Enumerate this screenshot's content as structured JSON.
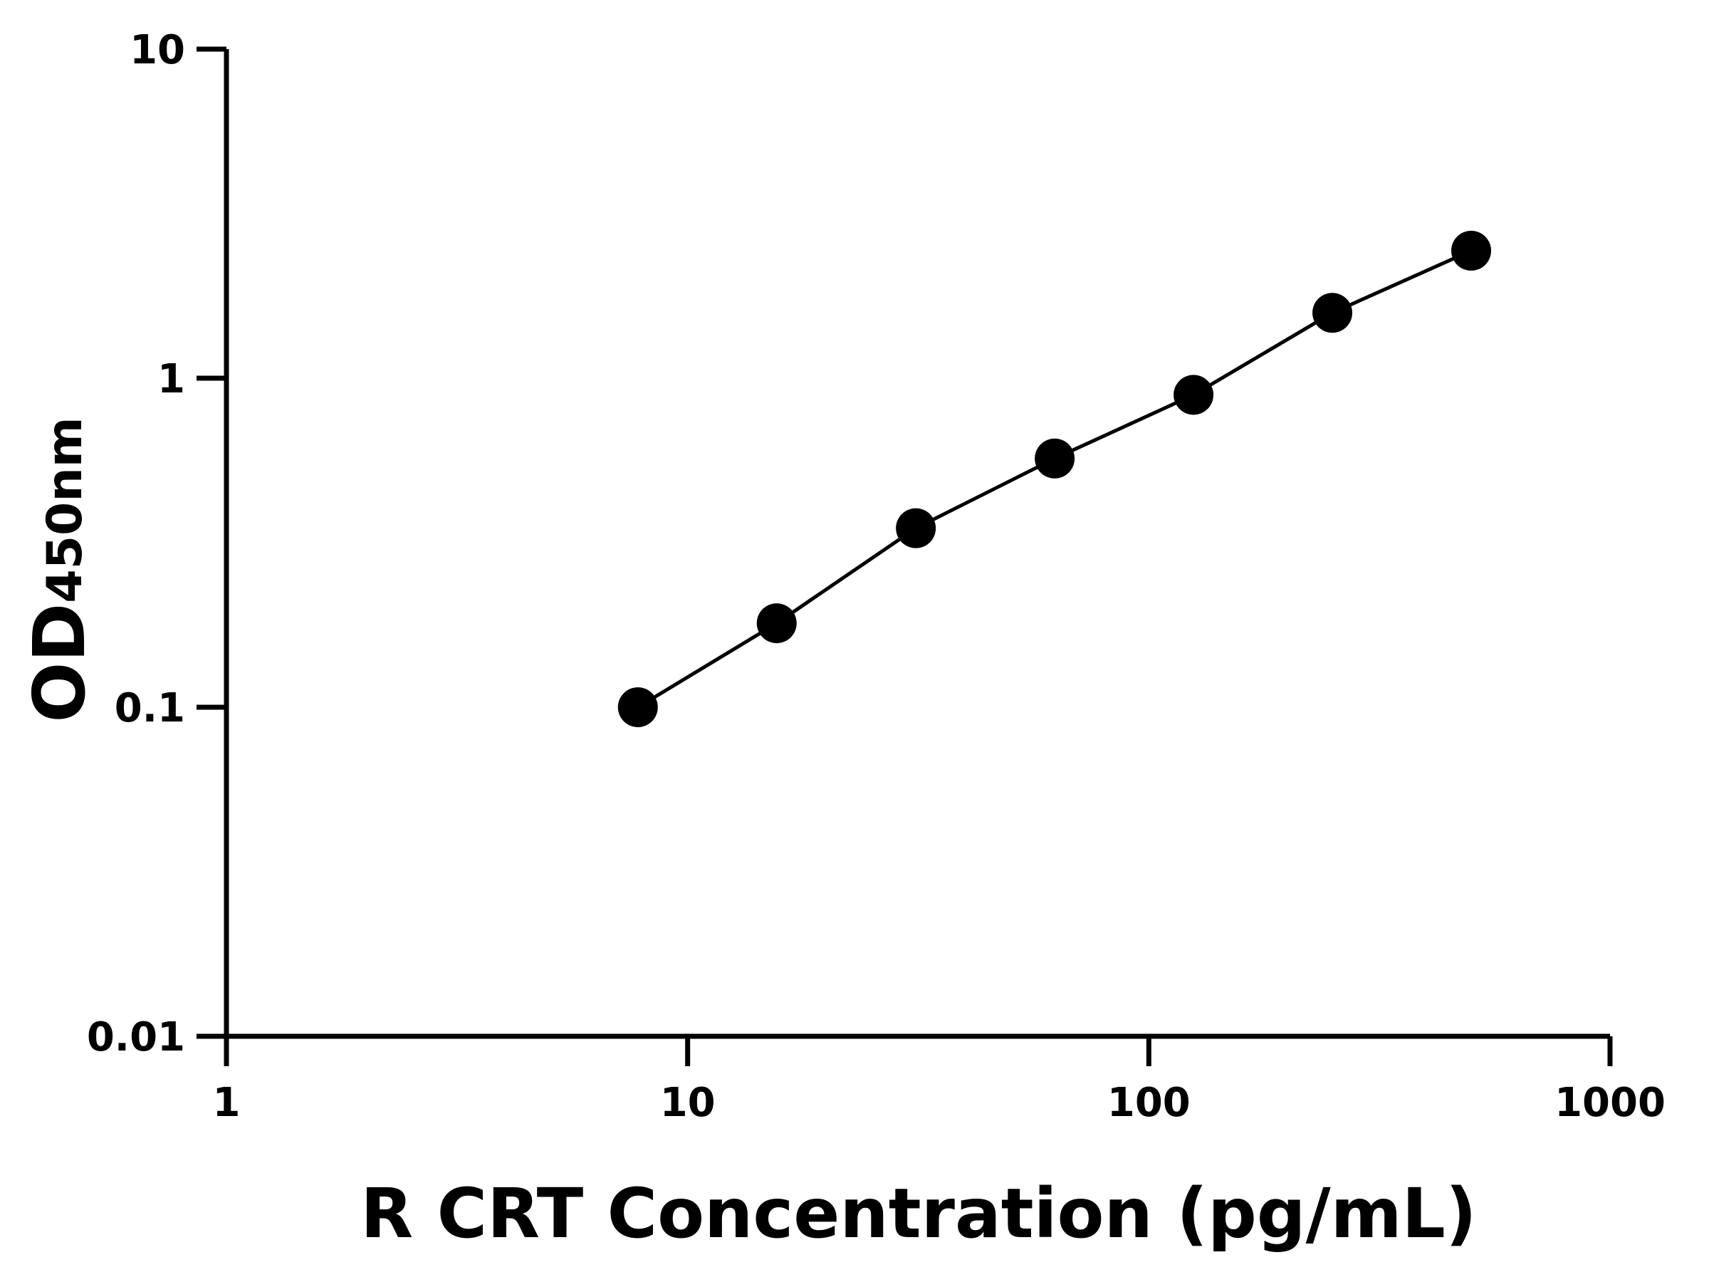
{
  "chart_data": {
    "type": "scatter",
    "x_label": "R CRT Concentration (pg/mL)",
    "y_label": "OD",
    "y_label_sub": "450nm",
    "x": [
      7.8,
      15.6,
      31.25,
      62.5,
      125,
      250,
      500
    ],
    "values": [
      0.1,
      0.18,
      0.35,
      0.57,
      0.89,
      1.58,
      2.44
    ],
    "color": "#000000",
    "xscale": "log",
    "yscale": "log",
    "xlim": [
      1,
      1000
    ],
    "ylim": [
      0.01,
      10
    ],
    "xticks": [
      1,
      10,
      100,
      1000
    ],
    "yticks": [
      0.01,
      0.1,
      1,
      10
    ],
    "line": true
  }
}
